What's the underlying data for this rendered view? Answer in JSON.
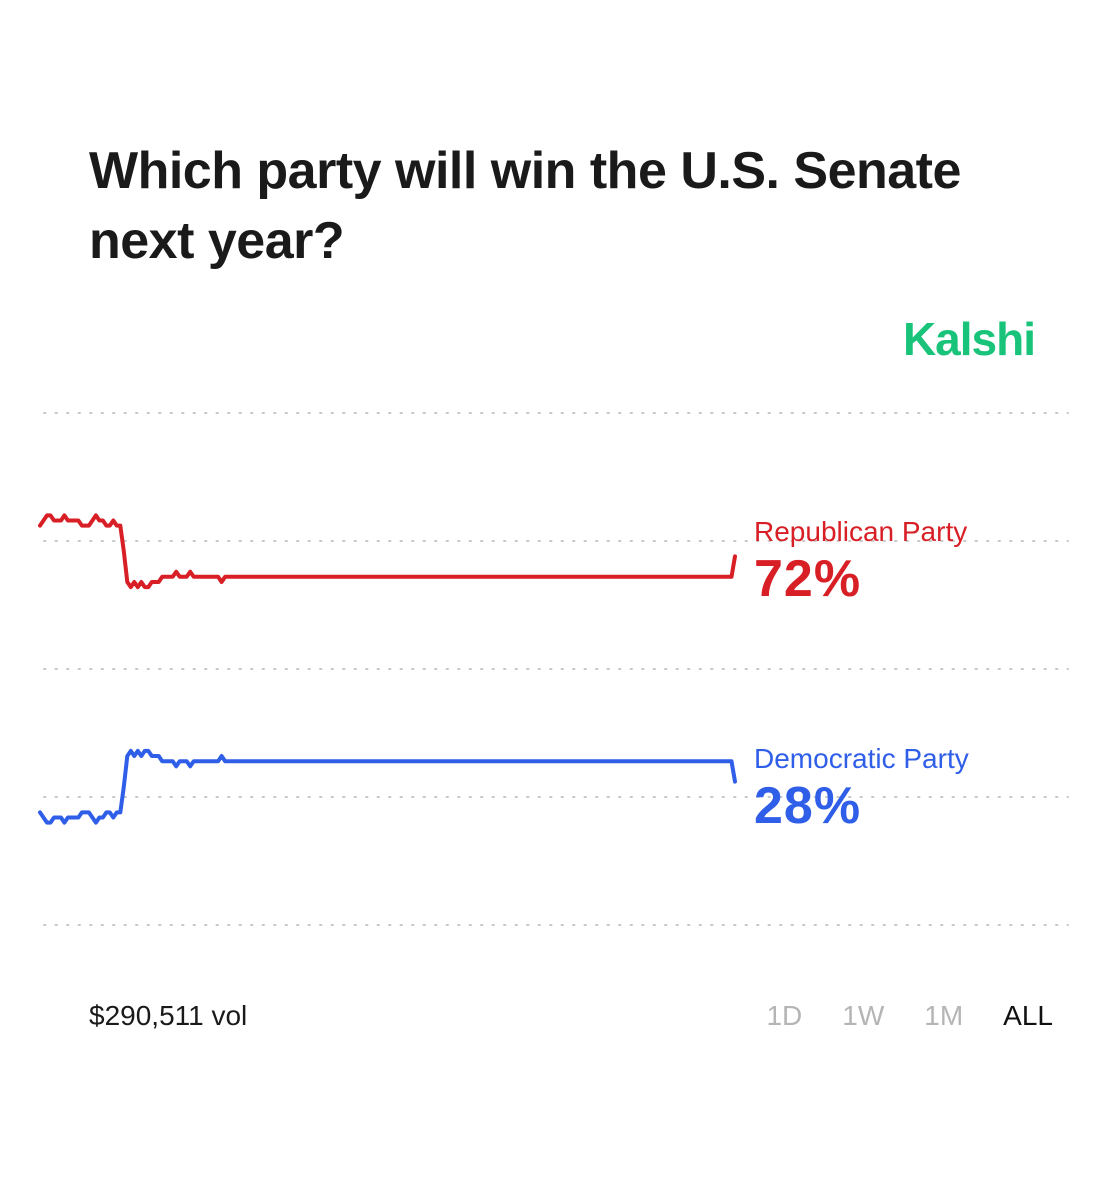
{
  "question": "Which party will win the U.S. Senate next year?",
  "brand": "Kalshi",
  "colors": {
    "republican": "#d81f26",
    "democratic": "#2f5ee8",
    "brand": "#19c47a",
    "grid": "#c9c9c9"
  },
  "footer": {
    "volume": "$290,511 vol",
    "ranges": [
      "1D",
      "1W",
      "1M",
      "ALL"
    ],
    "active_range": "ALL"
  },
  "chart_data": {
    "type": "line",
    "title": "",
    "xlabel": "",
    "ylabel": "",
    "ylim": [
      0,
      100
    ],
    "grid": true,
    "legend": "right-end labels",
    "series": [
      {
        "name": "Republican Party",
        "display_value": "72%",
        "color": "#d81f26",
        "values": [
          78,
          79,
          80,
          80,
          79,
          79,
          79,
          80,
          79,
          79,
          79,
          79,
          78,
          78,
          78,
          79,
          80,
          79,
          79,
          78,
          78,
          79,
          78,
          78,
          73,
          67,
          66,
          67,
          66,
          67,
          66,
          66,
          67,
          67,
          67,
          68,
          68,
          68,
          68,
          69,
          68,
          68,
          68,
          69,
          68,
          68,
          68,
          68,
          68,
          68,
          68,
          68,
          67,
          68,
          68,
          68,
          68,
          68,
          68,
          68,
          68,
          68,
          68,
          68,
          68,
          68,
          68,
          68,
          68,
          68,
          68,
          68,
          68,
          68,
          68,
          68,
          68,
          68,
          68,
          68,
          68,
          68,
          68,
          68,
          68,
          68,
          68,
          68,
          68,
          68,
          68,
          68,
          68,
          68,
          68,
          68,
          68,
          68,
          68,
          68,
          68,
          68,
          68,
          68,
          68,
          68,
          68,
          68,
          68,
          68,
          68,
          68,
          68,
          68,
          68,
          68,
          68,
          68,
          68,
          68,
          68,
          68,
          68,
          68,
          68,
          68,
          68,
          68,
          68,
          68,
          68,
          68,
          68,
          68,
          68,
          68,
          68,
          68,
          68,
          68,
          68,
          68,
          68,
          68,
          68,
          68,
          68,
          68,
          68,
          68,
          68,
          68,
          68,
          68,
          68,
          68,
          68,
          68,
          68,
          68,
          68,
          68,
          68,
          68,
          68,
          68,
          68,
          68,
          68,
          68,
          68,
          68,
          68,
          68,
          68,
          68,
          68,
          68,
          68,
          68,
          68,
          68,
          68,
          68,
          68,
          68,
          68,
          68,
          68,
          68,
          68,
          68,
          68,
          68,
          68,
          68,
          68,
          68,
          68,
          72
        ]
      },
      {
        "name": "Democratic Party",
        "display_value": "28%",
        "color": "#2f5ee8",
        "values": [
          22,
          21,
          20,
          20,
          21,
          21,
          21,
          20,
          21,
          21,
          21,
          21,
          22,
          22,
          22,
          21,
          20,
          21,
          21,
          22,
          22,
          21,
          22,
          22,
          27,
          33,
          34,
          33,
          34,
          33,
          34,
          34,
          33,
          33,
          33,
          32,
          32,
          32,
          32,
          31,
          32,
          32,
          32,
          31,
          32,
          32,
          32,
          32,
          32,
          32,
          32,
          32,
          33,
          32,
          32,
          32,
          32,
          32,
          32,
          32,
          32,
          32,
          32,
          32,
          32,
          32,
          32,
          32,
          32,
          32,
          32,
          32,
          32,
          32,
          32,
          32,
          32,
          32,
          32,
          32,
          32,
          32,
          32,
          32,
          32,
          32,
          32,
          32,
          32,
          32,
          32,
          32,
          32,
          32,
          32,
          32,
          32,
          32,
          32,
          32,
          32,
          32,
          32,
          32,
          32,
          32,
          32,
          32,
          32,
          32,
          32,
          32,
          32,
          32,
          32,
          32,
          32,
          32,
          32,
          32,
          32,
          32,
          32,
          32,
          32,
          32,
          32,
          32,
          32,
          32,
          32,
          32,
          32,
          32,
          32,
          32,
          32,
          32,
          32,
          32,
          32,
          32,
          32,
          32,
          32,
          32,
          32,
          32,
          32,
          32,
          32,
          32,
          32,
          32,
          32,
          32,
          32,
          32,
          32,
          32,
          32,
          32,
          32,
          32,
          32,
          32,
          32,
          32,
          32,
          32,
          32,
          32,
          32,
          32,
          32,
          32,
          32,
          32,
          32,
          32,
          32,
          32,
          32,
          32,
          32,
          32,
          32,
          32,
          32,
          32,
          32,
          32,
          32,
          32,
          32,
          32,
          32,
          32,
          32,
          28
        ]
      }
    ]
  }
}
